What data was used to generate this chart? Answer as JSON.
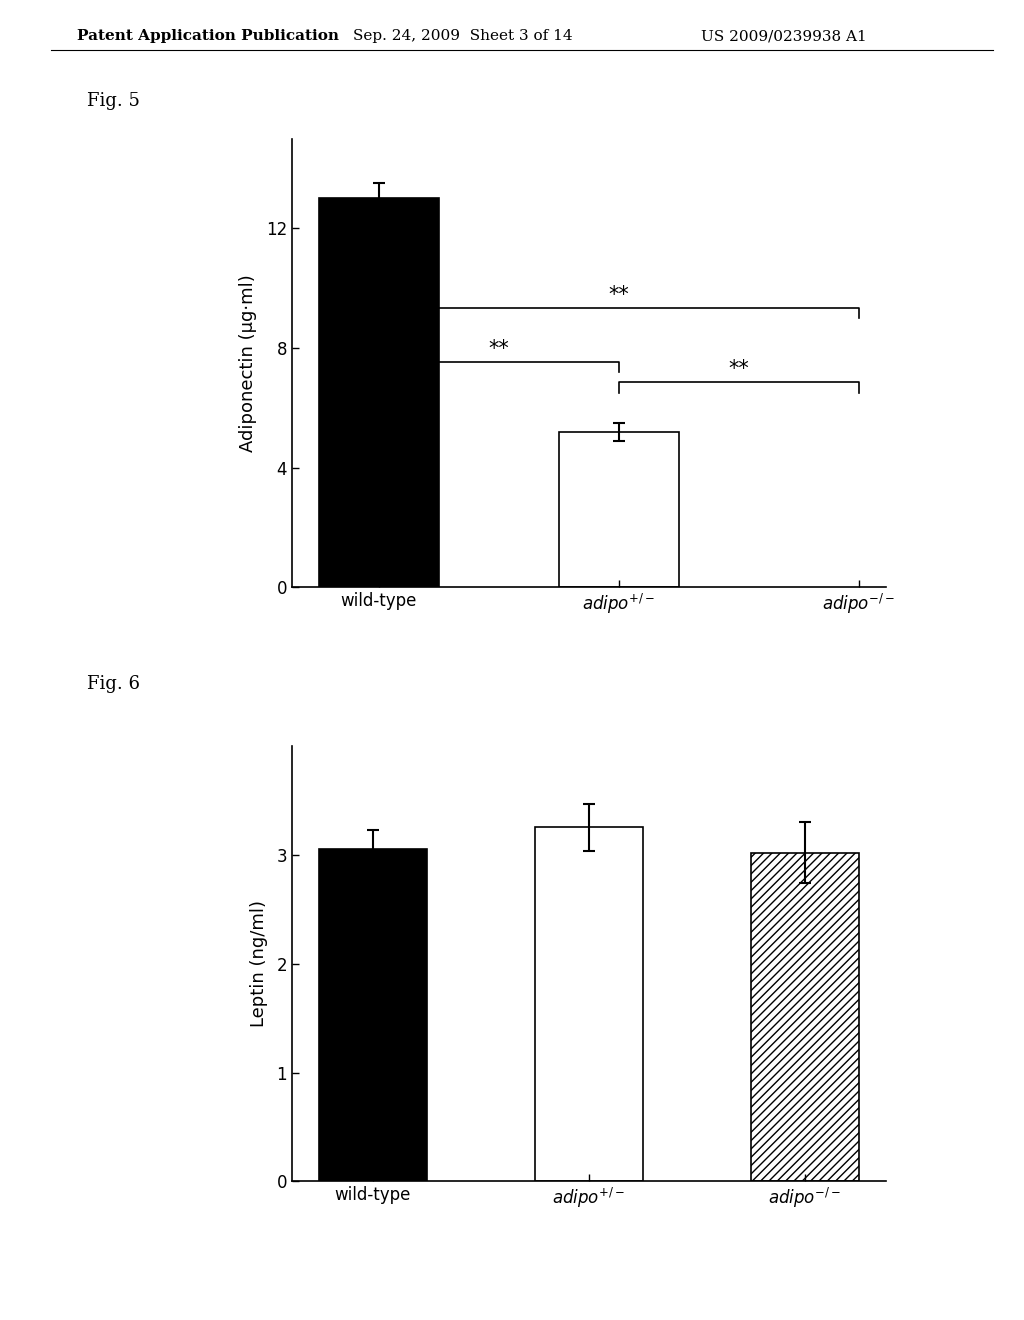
{
  "fig5": {
    "categories": [
      "wild-type",
      "adipo+/-",
      "adipo-/-"
    ],
    "values": [
      13.0,
      5.2,
      0.0
    ],
    "errors": [
      0.5,
      0.3,
      0.0
    ],
    "colors": [
      "black",
      "white",
      "none"
    ],
    "ylabel": "Adiponectin (μg·ml)",
    "yticks": [
      0,
      4,
      8,
      12
    ],
    "ylim": [
      0,
      15
    ],
    "label": "Fig. 5"
  },
  "fig6": {
    "categories": [
      "wild-type",
      "adipo+/-",
      "adipo-/-"
    ],
    "values": [
      3.05,
      3.25,
      3.02
    ],
    "errors": [
      0.18,
      0.22,
      0.28
    ],
    "colors": [
      "black",
      "white",
      "hatch"
    ],
    "ylabel": "Leptin (ng/ml)",
    "yticks": [
      0,
      1,
      2,
      3
    ],
    "ylim": [
      0,
      4.0
    ],
    "label": "Fig. 6"
  },
  "header_left": "Patent Application Publication",
  "header_mid": "Sep. 24, 2009  Sheet 3 of 14",
  "header_right": "US 2009/0239938 A1",
  "background_color": "#ffffff",
  "bar_width": 0.5,
  "tick_fontsize": 12,
  "label_fontsize": 13,
  "header_fontsize": 11
}
